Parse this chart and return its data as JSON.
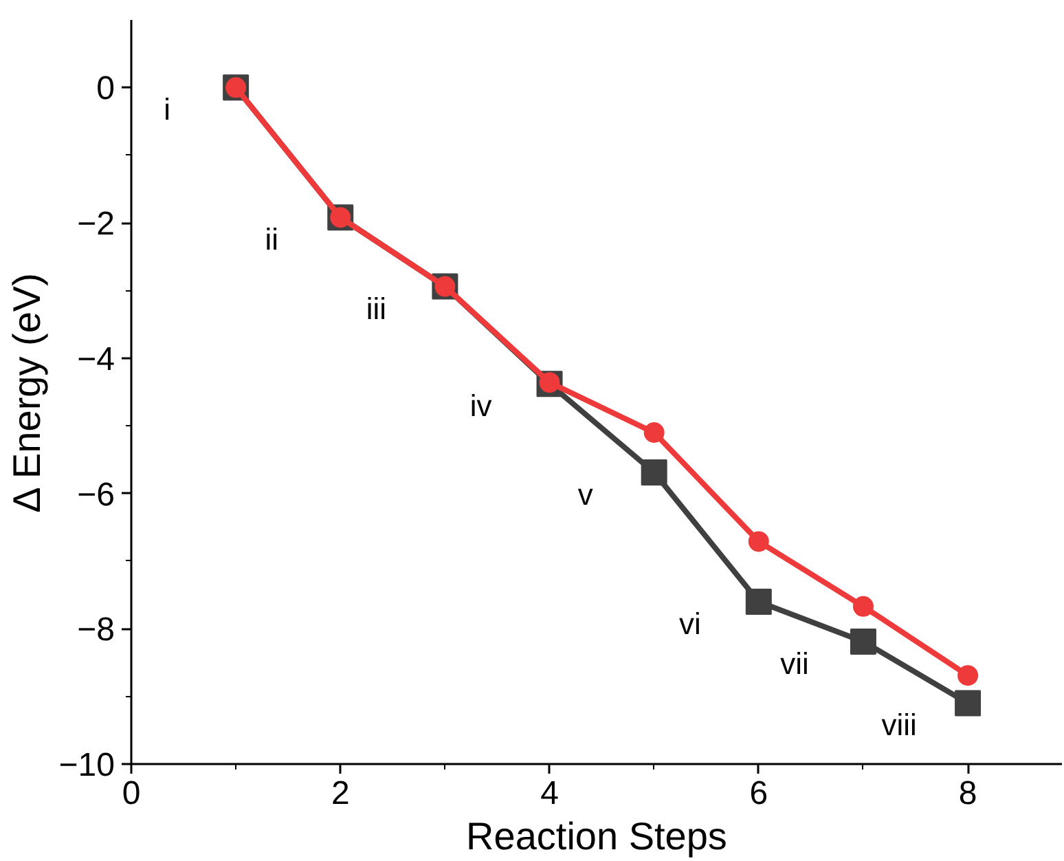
{
  "chart_data": {
    "type": "line",
    "xlabel": "Reaction Steps",
    "ylabel": "Δ Energy (eV)",
    "x": [
      1,
      2,
      3,
      4,
      5,
      6,
      7,
      8
    ],
    "series": [
      {
        "color": "#404040",
        "marker": "square",
        "values": [
          0,
          -1.92,
          -2.94,
          -4.38,
          -5.69,
          -7.6,
          -8.19,
          -9.1
        ]
      },
      {
        "color": "#ee3a3a",
        "marker": "circle",
        "values": [
          0,
          -1.92,
          -2.94,
          -4.36,
          -5.1,
          -6.71,
          -7.67,
          -8.69
        ]
      }
    ],
    "xlim": [
      0,
      8.9
    ],
    "xticks": [
      0,
      2,
      4,
      6,
      8
    ],
    "ylim": [
      -10,
      1
    ],
    "yticks": [
      0,
      -2,
      -4,
      -6,
      -8,
      {
        "value": -10,
        "label": "−10"
      }
    ],
    "grid": false,
    "line_style": "solid",
    "annotations": [
      {
        "text": "i",
        "x": 1,
        "y": 0
      },
      {
        "text": "ii",
        "x": 2,
        "y": -1.92
      },
      {
        "text": "iii",
        "x": 3,
        "y": -2.94
      },
      {
        "text": "iv",
        "x": 4,
        "y": -4.38
      },
      {
        "text": "v",
        "x": 5,
        "y": -5.69
      },
      {
        "text": "vi",
        "x": 6,
        "y": -7.6
      },
      {
        "text": "vii",
        "x": 7,
        "y": -8.19
      },
      {
        "text": "viii",
        "x": 8,
        "y": -9.1
      }
    ]
  }
}
